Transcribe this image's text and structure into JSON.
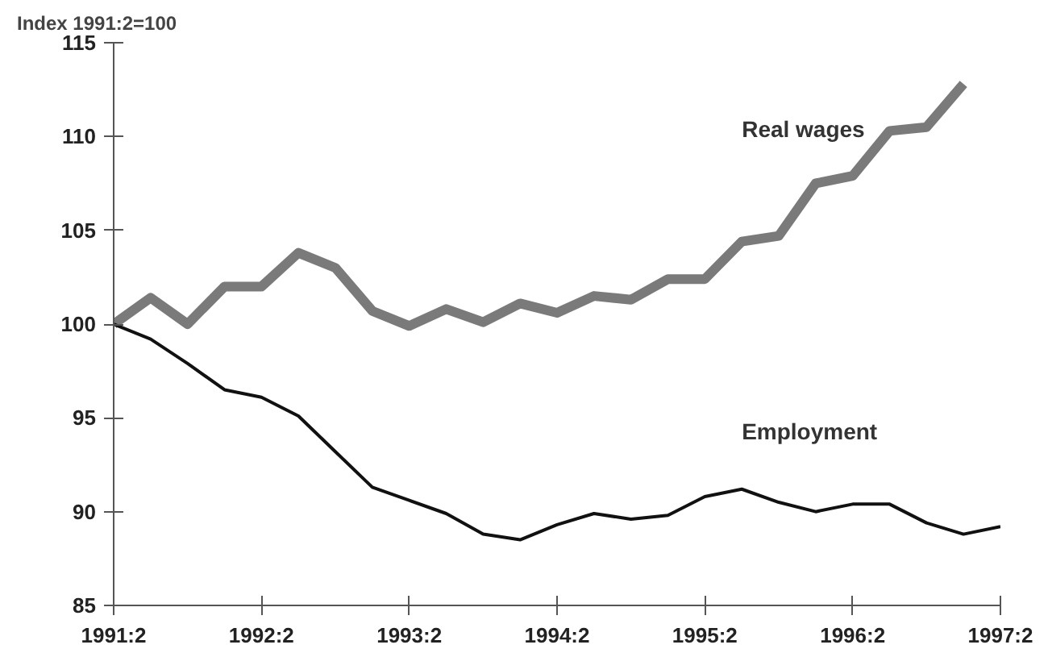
{
  "chart_data": {
    "type": "line",
    "ylabel": "Index 1991:2=100",
    "categories": [
      "1991:2",
      null,
      null,
      null,
      "1992:2",
      null,
      null,
      null,
      "1993:2",
      null,
      null,
      null,
      "1994:2",
      null,
      null,
      null,
      "1995:2",
      null,
      null,
      null,
      "1996:2",
      null,
      null,
      null,
      "1997:2"
    ],
    "series": [
      {
        "name": "Real wages",
        "color": "#7a7a7a",
        "values": [
          100,
          101.4,
          100,
          102,
          102,
          103.8,
          103,
          100.7,
          99.9,
          100.8,
          100.1,
          101.1,
          100.6,
          101.5,
          101.3,
          102.4,
          102.4,
          104.4,
          104.7,
          107.5,
          107.9,
          110.3,
          110.5,
          112.8,
          null
        ]
      },
      {
        "name": "Employment",
        "color": "#111111",
        "values": [
          100,
          99.2,
          97.9,
          96.5,
          96.1,
          95.1,
          93.2,
          91.3,
          90.6,
          89.9,
          88.8,
          88.5,
          89.3,
          89.9,
          89.6,
          89.8,
          90.8,
          91.2,
          90.5,
          90.0,
          90.4,
          90.4,
          89.4,
          88.8,
          89.2
        ]
      }
    ],
    "ylim": [
      85,
      115
    ],
    "yticks": [
      85,
      90,
      95,
      100,
      105,
      110,
      115
    ],
    "grid": false,
    "marker": "none",
    "line_style": "solid"
  }
}
